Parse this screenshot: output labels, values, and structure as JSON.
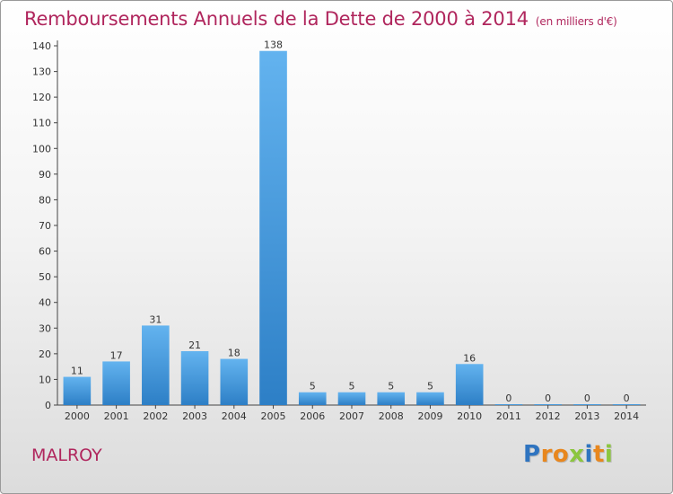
{
  "title": "Remboursements Annuels de la Dette de 2000 à 2014",
  "unit": "(en milliers d'€)",
  "town": "MALROY",
  "logo": {
    "chars": [
      "P",
      "r",
      "o",
      "x",
      "i",
      "t",
      "i"
    ]
  },
  "colors": {
    "title": "#b0265d",
    "bar_light": "#63b3ef",
    "bar_dark": "#2d7fc6",
    "logo": [
      "#2f74c0",
      "#e8871e",
      "#e8871e",
      "#8cc63f",
      "#2f74c0",
      "#e8871e",
      "#8cc63f"
    ]
  },
  "chart_data": {
    "type": "bar",
    "categories": [
      "2000",
      "2001",
      "2002",
      "2003",
      "2004",
      "2005",
      "2006",
      "2007",
      "2008",
      "2009",
      "2010",
      "2011",
      "2012",
      "2013",
      "2014"
    ],
    "values": [
      11,
      17,
      31,
      21,
      18,
      138,
      5,
      5,
      5,
      5,
      16,
      0,
      0,
      0,
      0
    ],
    "ylim": [
      0,
      140
    ],
    "yticks": [
      0,
      10,
      20,
      30,
      40,
      50,
      60,
      70,
      80,
      90,
      100,
      110,
      120,
      130,
      140
    ],
    "grid": false,
    "legend": "none"
  }
}
